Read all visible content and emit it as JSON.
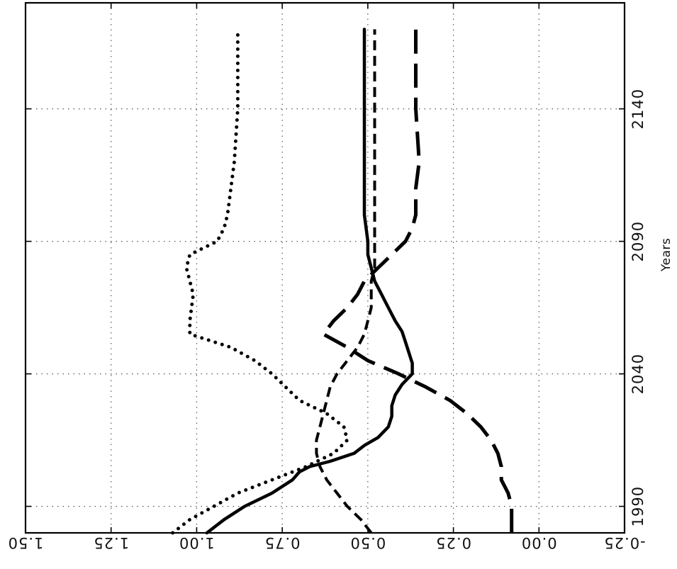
{
  "chart_data": {
    "type": "line",
    "orientation": "rotated-90",
    "xlabel": "Years",
    "ylabel": "",
    "title": "",
    "x_ticks": [
      1990,
      2040,
      2090,
      2140
    ],
    "x_tick_labels": [
      "1990",
      "2040",
      "2090",
      "2140"
    ],
    "xlim": [
      1980,
      2180
    ],
    "y_ticks": [
      -0.25,
      0.0,
      0.25,
      0.5,
      0.75,
      1.0,
      1.25,
      1.5
    ],
    "y_tick_labels": [
      "-0.25",
      "0.00",
      "0.25",
      "0.50",
      "0.75",
      "1.00",
      "1.25",
      "1.50"
    ],
    "ylim": [
      -0.25,
      1.5
    ],
    "grid": true,
    "series": [
      {
        "style": "solid",
        "x": [
          1980,
          1985,
          1990,
          1995,
          2000,
          2003,
          2005,
          2007,
          2010,
          2013,
          2016,
          2020,
          2024,
          2028,
          2032,
          2036,
          2040,
          2044,
          2048,
          2052,
          2056,
          2060,
          2065,
          2070,
          2075,
          2080,
          2085,
          2090,
          2100,
          2120,
          2140,
          2160,
          2170
        ],
        "y": [
          0.97,
          0.92,
          0.86,
          0.78,
          0.72,
          0.7,
          0.67,
          0.61,
          0.54,
          0.51,
          0.47,
          0.44,
          0.43,
          0.43,
          0.42,
          0.4,
          0.37,
          0.37,
          0.38,
          0.39,
          0.4,
          0.42,
          0.44,
          0.46,
          0.48,
          0.49,
          0.5,
          0.5,
          0.51,
          0.51,
          0.51,
          0.51,
          0.51
        ]
      },
      {
        "style": "short-dash",
        "x": [
          1980,
          1985,
          1990,
          1995,
          2000,
          2005,
          2010,
          2015,
          2020,
          2025,
          2030,
          2035,
          2040,
          2045,
          2050,
          2055,
          2060,
          2065,
          2070,
          2075,
          2080,
          2090,
          2100,
          2120,
          2140,
          2160,
          2170
        ],
        "y": [
          0.49,
          0.52,
          0.56,
          0.59,
          0.62,
          0.64,
          0.65,
          0.65,
          0.64,
          0.63,
          0.62,
          0.61,
          0.59,
          0.56,
          0.53,
          0.51,
          0.5,
          0.49,
          0.49,
          0.49,
          0.48,
          0.48,
          0.48,
          0.48,
          0.48,
          0.48,
          0.48
        ]
      },
      {
        "style": "long-dash",
        "x": [
          1980,
          1985,
          1990,
          1995,
          2000,
          2005,
          2010,
          2015,
          2020,
          2025,
          2030,
          2035,
          2040,
          2045,
          2050,
          2055,
          2060,
          2065,
          2070,
          2075,
          2080,
          2085,
          2090,
          2095,
          2100,
          2110,
          2120,
          2140,
          2160,
          2170
        ],
        "y": [
          0.08,
          0.08,
          0.08,
          0.09,
          0.11,
          0.11,
          0.12,
          0.14,
          0.17,
          0.21,
          0.26,
          0.33,
          0.41,
          0.5,
          0.56,
          0.63,
          0.6,
          0.56,
          0.53,
          0.51,
          0.47,
          0.43,
          0.39,
          0.37,
          0.36,
          0.36,
          0.35,
          0.36,
          0.36,
          0.36
        ]
      },
      {
        "style": "dotted",
        "x": [
          1980,
          1985,
          1990,
          1995,
          2000,
          2005,
          2010,
          2015,
          2020,
          2025,
          2030,
          2035,
          2040,
          2045,
          2050,
          2055,
          2060,
          2070,
          2075,
          2080,
          2085,
          2090,
          2095,
          2100,
          2110,
          2120,
          2140,
          2160,
          2170
        ],
        "y": [
          1.07,
          1.02,
          0.95,
          0.88,
          0.78,
          0.68,
          0.6,
          0.56,
          0.57,
          0.62,
          0.7,
          0.74,
          0.78,
          0.83,
          0.9,
          1.02,
          1.02,
          1.01,
          1.02,
          1.03,
          1.02,
          0.94,
          0.92,
          0.91,
          0.9,
          0.89,
          0.88,
          0.88,
          0.88
        ]
      }
    ]
  }
}
